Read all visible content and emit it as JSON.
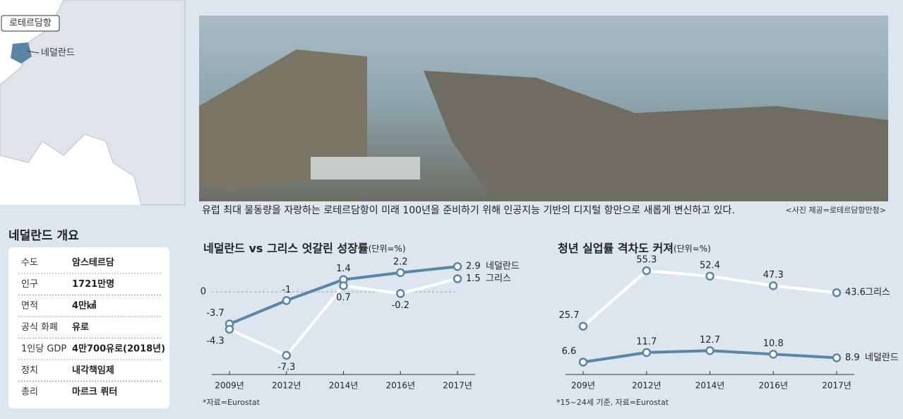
{
  "map": {
    "port": "로테르담항",
    "country": "네덜란드"
  },
  "photo": {
    "caption": "유럽 최대 물동량을 자랑하는 로테르담항이 미래 100년을 준비하기 위해 인공지능 기반의 디지털 항만으로 새롭게 변신하고 있다.",
    "credit": "<사진 제공=로테르담항만청>"
  },
  "table": {
    "title": "네덜란드 개요",
    "rows": [
      [
        "수도",
        "암스테르담"
      ],
      [
        "인구",
        "1721만명"
      ],
      [
        "면적",
        "4만㎢"
      ],
      [
        "공식 화폐",
        "유로"
      ],
      [
        "1인당 GDP",
        "4만700유로(2018년)"
      ],
      [
        "정치",
        "내각책임제"
      ],
      [
        "총리",
        "마르크 뤼터"
      ]
    ]
  },
  "chart_data": [
    {
      "type": "line",
      "title": "네덜란드 vs 그리스 엇갈린 성장률",
      "unit": "(단위=%)",
      "categories": [
        "2009년",
        "2012년",
        "2014년",
        "2016년",
        "2017년"
      ],
      "series": [
        {
          "name": "네덜란드",
          "color": "#5a86a6",
          "values": [
            -3.7,
            -1.0,
            1.4,
            2.2,
            2.9
          ]
        },
        {
          "name": "그리스",
          "color": "#ffffff",
          "values": [
            -4.3,
            -7.3,
            0.7,
            -0.2,
            1.5
          ]
        }
      ],
      "ylim": [
        -9.5,
        4.3
      ],
      "yticks": [
        0
      ],
      "grid": true,
      "note": "*자료=Eurostat"
    },
    {
      "type": "line",
      "title": "청년 실업률 격차도 커져",
      "unit": "(단위=%)",
      "categories": [
        "209년",
        "2012년",
        "2014년",
        "2016년",
        "2017년"
      ],
      "series": [
        {
          "name": "그리스",
          "color": "#ffffff",
          "values": [
            25.7,
            55.3,
            52.4,
            47.3,
            43.6
          ]
        },
        {
          "name": "네덜란드",
          "color": "#5a86a6",
          "values": [
            6.6,
            11.7,
            12.7,
            10.8,
            8.9
          ]
        }
      ],
      "ylim": [
        0,
        64
      ],
      "yticks": [],
      "grid": false,
      "note": "*15~24세 기준, 자료=Eurostat"
    }
  ]
}
